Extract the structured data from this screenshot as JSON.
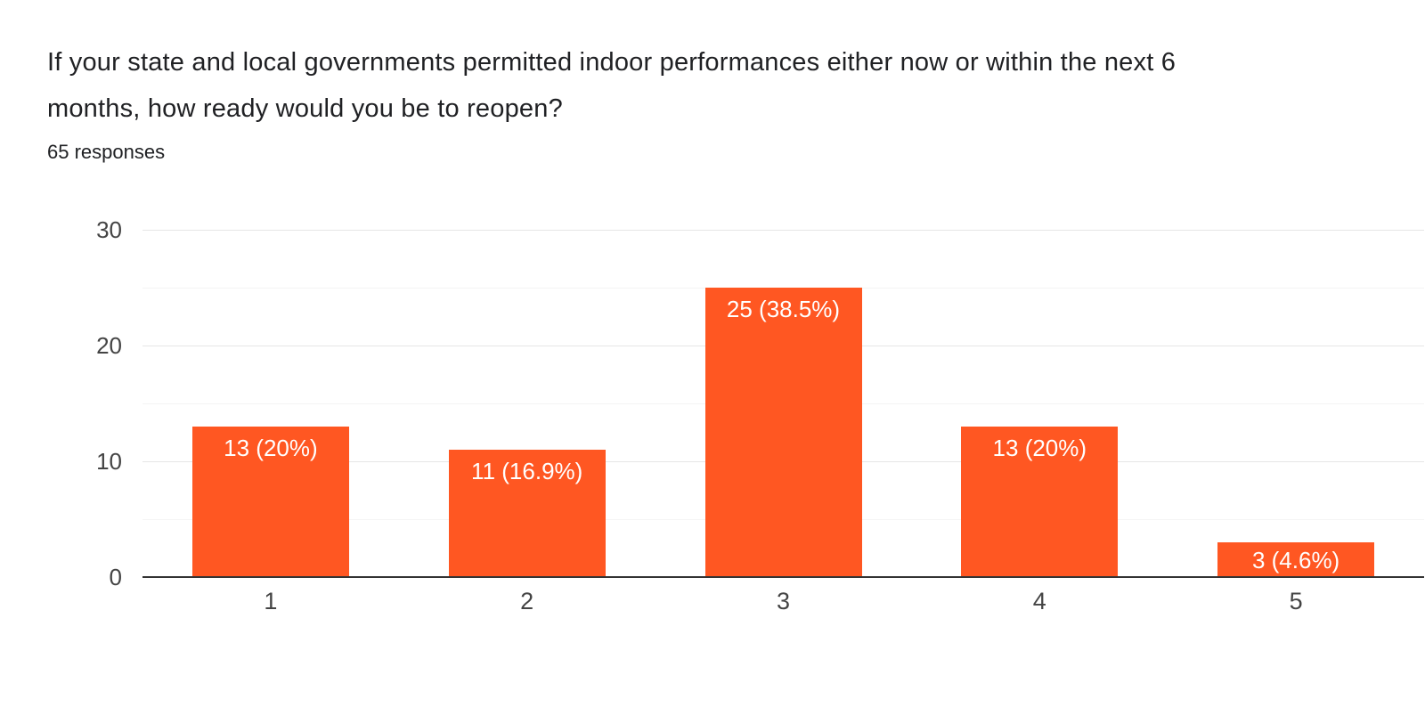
{
  "header": {
    "title_line1": "If your state and local governments permitted indoor performances either now or within the next 6",
    "title_line2": "months, how ready would you be to reopen?",
    "responses_label": "65 responses"
  },
  "chart_data": {
    "type": "bar",
    "title": "If your state and local governments permitted indoor performances either now or within the next 6 months, how ready would you be to reopen?",
    "subtitle": "65 responses",
    "total_responses": 65,
    "categories": [
      "1",
      "2",
      "3",
      "4",
      "5"
    ],
    "values": [
      13,
      11,
      25,
      13,
      3
    ],
    "bar_labels": [
      "13 (20%)",
      "11 (16.9%)",
      "25 (38.5%)",
      "13 (20%)",
      "3 (4.6%)"
    ],
    "xlabel": "",
    "ylabel": "",
    "ylim": [
      0,
      30
    ],
    "yticks": [
      0,
      10,
      20,
      30
    ],
    "minor_gridlines": [
      5,
      15,
      25
    ],
    "grid": "horizontal",
    "legend": "none",
    "colors": {
      "bar": "#ff5722",
      "bar_label": "#ffffff",
      "axis_text": "#444444",
      "baseline": "#333333",
      "gridline_major": "#e6e6e6",
      "gridline_minor": "#f4f4f4",
      "title_text": "#202124",
      "background": "#ffffff"
    }
  }
}
